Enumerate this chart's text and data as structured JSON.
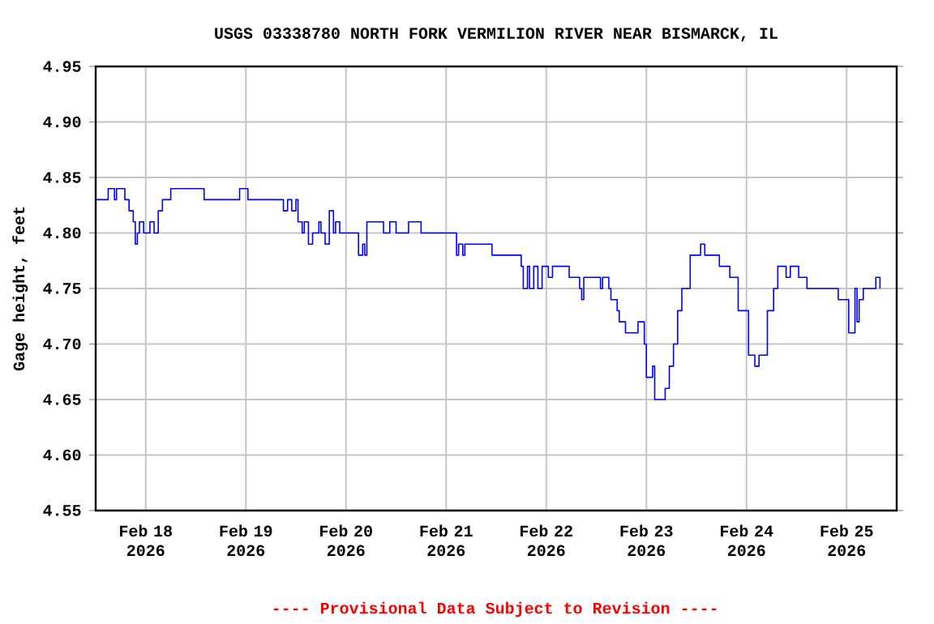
{
  "chart_data": {
    "type": "step",
    "title": "USGS 03338780 NORTH FORK VERMILION RIVER NEAR BISMARCK, IL",
    "ylabel": "Gage height, feet",
    "annotations": [
      "---- Provisional Data Subject to Revision ----"
    ],
    "color": "#0000ff",
    "grid": true,
    "xlim": [
      "2026-02-17T12:00",
      "2026-02-25T12:00"
    ],
    "xticks": [
      {
        "value": "2026-02-18",
        "label": "Feb 18 2026"
      },
      {
        "value": "2026-02-19",
        "label": "Feb 19 2026"
      },
      {
        "value": "2026-02-20",
        "label": "Feb 20 2026"
      },
      {
        "value": "2026-02-21",
        "label": "Feb 21 2026"
      },
      {
        "value": "2026-02-22",
        "label": "Feb 22 2026"
      },
      {
        "value": "2026-02-23",
        "label": "Feb 23 2026"
      },
      {
        "value": "2026-02-24",
        "label": "Feb 24 2026"
      },
      {
        "value": "2026-02-25",
        "label": "Feb 25 2026"
      }
    ],
    "ylim": [
      4.55,
      4.95
    ],
    "yticks": [
      {
        "value": 4.55,
        "label": "4.55"
      },
      {
        "value": 4.6,
        "label": "4.60"
      },
      {
        "value": 4.65,
        "label": "4.65"
      },
      {
        "value": 4.7,
        "label": "4.70"
      },
      {
        "value": 4.75,
        "label": "4.75"
      },
      {
        "value": 4.8,
        "label": "4.80"
      },
      {
        "value": 4.85,
        "label": "4.85"
      },
      {
        "value": 4.9,
        "label": "4.90"
      },
      {
        "value": 4.95,
        "label": "4.95"
      }
    ],
    "x": [
      "2026-02-17T12:00",
      "2026-02-17T15:00",
      "2026-02-17T16:30",
      "2026-02-17T17:00",
      "2026-02-17T19:00",
      "2026-02-17T20:00",
      "2026-02-17T21:00",
      "2026-02-17T21:30",
      "2026-02-17T22:00",
      "2026-02-17T22:30",
      "2026-02-17T23:30",
      "2026-02-18T01:00",
      "2026-02-18T02:00",
      "2026-02-18T03:00",
      "2026-02-18T04:00",
      "2026-02-18T06:00",
      "2026-02-18T13:30",
      "2026-02-18T14:00",
      "2026-02-18T22:00",
      "2026-02-18T22:30",
      "2026-02-19T00:00",
      "2026-02-19T00:30",
      "2026-02-19T08:30",
      "2026-02-19T09:00",
      "2026-02-19T10:00",
      "2026-02-19T11:00",
      "2026-02-19T12:00",
      "2026-02-19T12:30",
      "2026-02-19T13:30",
      "2026-02-19T14:00",
      "2026-02-19T15:00",
      "2026-02-19T16:00",
      "2026-02-19T17:30",
      "2026-02-19T18:00",
      "2026-02-19T19:00",
      "2026-02-19T20:00",
      "2026-02-19T21:00",
      "2026-02-19T21:30",
      "2026-02-19T22:30",
      "2026-02-20T02:30",
      "2026-02-20T03:00",
      "2026-02-20T04:00",
      "2026-02-20T04:30",
      "2026-02-20T05:00",
      "2026-02-20T07:00",
      "2026-02-20T09:00",
      "2026-02-20T10:30",
      "2026-02-20T12:00",
      "2026-02-20T14:00",
      "2026-02-20T15:00",
      "2026-02-20T17:00",
      "2026-02-20T18:00",
      "2026-02-21T02:00",
      "2026-02-21T02:30",
      "2026-02-21T03:00",
      "2026-02-21T04:00",
      "2026-02-21T04:30",
      "2026-02-21T10:30",
      "2026-02-21T11:00",
      "2026-02-21T17:30",
      "2026-02-21T18:00",
      "2026-02-21T18:30",
      "2026-02-21T19:30",
      "2026-02-21T20:00",
      "2026-02-21T21:00",
      "2026-02-21T22:00",
      "2026-02-21T23:00",
      "2026-02-22T00:30",
      "2026-02-22T01:30",
      "2026-02-22T05:00",
      "2026-02-22T05:30",
      "2026-02-22T08:00",
      "2026-02-22T08:30",
      "2026-02-22T09:00",
      "2026-02-22T12:30",
      "2026-02-22T13:00",
      "2026-02-22T13:30",
      "2026-02-22T15:00",
      "2026-02-22T15:30",
      "2026-02-22T17:00",
      "2026-02-22T17:30",
      "2026-02-22T19:00",
      "2026-02-22T22:00",
      "2026-02-22T23:30",
      "2026-02-23T00:00",
      "2026-02-23T01:30",
      "2026-02-23T02:00",
      "2026-02-23T04:30",
      "2026-02-23T05:30",
      "2026-02-23T06:30",
      "2026-02-23T07:30",
      "2026-02-23T08:30",
      "2026-02-23T10:30",
      "2026-02-23T13:00",
      "2026-02-23T14:00",
      "2026-02-23T17:30",
      "2026-02-23T20:00",
      "2026-02-23T22:00",
      "2026-02-24T00:30",
      "2026-02-24T02:00",
      "2026-02-24T03:00",
      "2026-02-24T05:00",
      "2026-02-24T06:30",
      "2026-02-24T07:30",
      "2026-02-24T09:30",
      "2026-02-24T10:30",
      "2026-02-24T12:30",
      "2026-02-24T14:30",
      "2026-02-24T21:00",
      "2026-02-24T22:00",
      "2026-02-25T00:00",
      "2026-02-25T00:30",
      "2026-02-25T02:00",
      "2026-02-25T02:30",
      "2026-02-25T03:00",
      "2026-02-25T04:00",
      "2026-02-25T07:00",
      "2026-02-25T08:00"
    ],
    "values": [
      4.83,
      4.84,
      4.83,
      4.84,
      4.83,
      4.82,
      4.81,
      4.79,
      4.8,
      4.81,
      4.8,
      4.81,
      4.8,
      4.82,
      4.83,
      4.84,
      4.84,
      4.83,
      4.83,
      4.84,
      4.84,
      4.83,
      4.83,
      4.82,
      4.83,
      4.82,
      4.83,
      4.81,
      4.8,
      4.81,
      4.79,
      4.8,
      4.81,
      4.8,
      4.79,
      4.82,
      4.8,
      4.81,
      4.8,
      4.8,
      4.78,
      4.79,
      4.78,
      4.81,
      4.81,
      4.8,
      4.81,
      4.8,
      4.8,
      4.81,
      4.81,
      4.8,
      4.8,
      4.78,
      4.79,
      4.78,
      4.79,
      4.79,
      4.78,
      4.78,
      4.77,
      4.75,
      4.77,
      4.75,
      4.77,
      4.75,
      4.77,
      4.76,
      4.77,
      4.77,
      4.76,
      4.75,
      4.74,
      4.76,
      4.76,
      4.75,
      4.76,
      4.75,
      4.74,
      4.73,
      4.72,
      4.71,
      4.72,
      4.7,
      4.67,
      4.68,
      4.65,
      4.66,
      4.68,
      4.7,
      4.73,
      4.75,
      4.78,
      4.79,
      4.78,
      4.77,
      4.76,
      4.73,
      4.69,
      4.68,
      4.69,
      4.73,
      4.75,
      4.77,
      4.76,
      4.77,
      4.76,
      4.75,
      4.75,
      4.74,
      4.74,
      4.71,
      4.75,
      4.72,
      4.74,
      4.75,
      4.76,
      4.75
    ]
  }
}
